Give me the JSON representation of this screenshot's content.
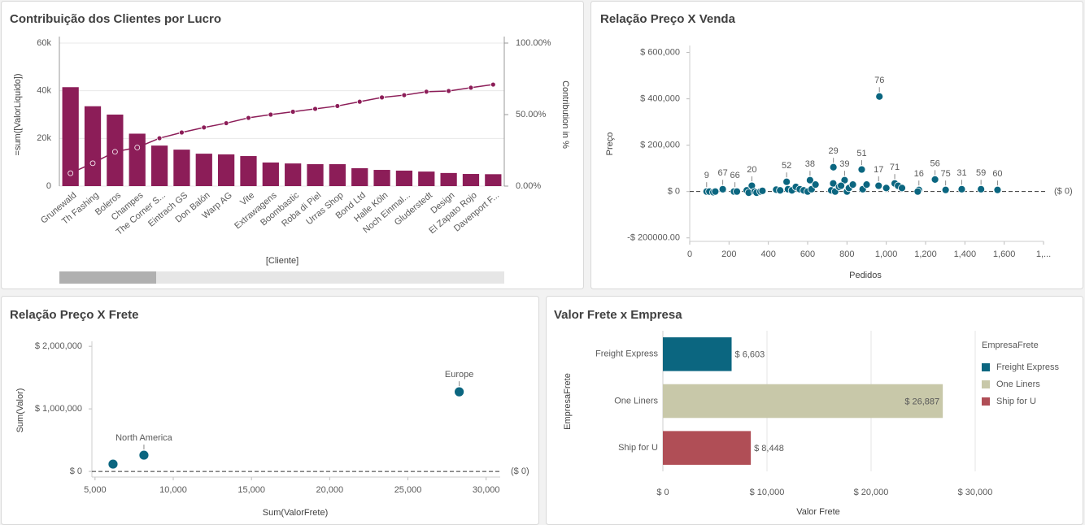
{
  "chart_data": [
    {
      "type": "bar",
      "title": "Contribuição dos Clientes por Lucro",
      "y_label": "=sum([ValorLiquido])",
      "y2_label": "Contribution in %",
      "x_label": "[Cliente]",
      "categories": [
        "Grunewald",
        "Th Fashing",
        "Boleros",
        "Champes",
        "The Corner S...",
        "Eintrach GS",
        "Don Balón",
        "Warp AG",
        "Vite",
        "Extrawagens",
        "Boombastic",
        "Roba di Piel",
        "Urras Shop",
        "Bond Ltd",
        "Halle Köln",
        "Noch Einmal...",
        "Gluderstedt",
        "Design",
        "El Zapato Rojo",
        "Davenport F..."
      ],
      "series": [
        {
          "color": "#8c1d58",
          "values": [
            41500,
            33500,
            30000,
            22000,
            17000,
            15300,
            13600,
            13300,
            12600,
            9900,
            9500,
            9200,
            9200,
            7500,
            6800,
            6500,
            6100,
            5500,
            5100,
            5000
          ]
        },
        {
          "type": "line",
          "axis": "y2",
          "color": "#8c1d58",
          "values": [
            9,
            16,
            24,
            27,
            33.5,
            37.5,
            41,
            44,
            47.7,
            50,
            52,
            54,
            56,
            59,
            62,
            63.6,
            66,
            66.5,
            68.8,
            71
          ]
        }
      ],
      "ylim": [
        0,
        60000
      ],
      "yticks": [
        0,
        {
          "value": 20000,
          "label": "20k"
        },
        {
          "value": 40000,
          "label": "40k"
        },
        {
          "value": 60000,
          "label": "60k"
        }
      ],
      "y2lim": [
        0,
        100
      ],
      "y2ticks": [
        {
          "value": 0,
          "label": "0.00%"
        },
        {
          "value": 50,
          "label": "50.00%"
        },
        {
          "value": 100,
          "label": "100.00%"
        }
      ],
      "grid": true
    },
    {
      "type": "scatter",
      "title": "Relação Preço X Venda",
      "x_label": "Pedidos",
      "y_label": "Preço",
      "color": "#0b6680",
      "x": [
        86,
        168,
        230,
        316,
        493,
        612,
        731,
        788,
        875,
        965,
        961,
        1043,
        1166,
        1248,
        1302,
        1384,
        1482,
        1566,
        100,
        120,
        130,
        225,
        240,
        290,
        300,
        330,
        340,
        360,
        370,
        440,
        460,
        500,
        520,
        540,
        560,
        580,
        600,
        620,
        640,
        720,
        730,
        740,
        760,
        770,
        800,
        810,
        830,
        880,
        900,
        1000,
        1060,
        1080,
        1160
      ],
      "y": [
        0,
        10000,
        0,
        25000,
        42000,
        49000,
        105000,
        49000,
        95000,
        410000,
        25000,
        35000,
        7000,
        52000,
        7000,
        10000,
        10000,
        7000,
        0,
        -3000,
        0,
        0,
        0,
        5000,
        -5000,
        0,
        -5000,
        0,
        3000,
        8000,
        5000,
        10000,
        5000,
        20000,
        10000,
        5000,
        0,
        10000,
        30000,
        5000,
        35000,
        0,
        20000,
        25000,
        0,
        15000,
        30000,
        10000,
        30000,
        15000,
        25000,
        15000,
        0
      ],
      "point_labels": [
        "9",
        "67",
        "66",
        "20",
        "52",
        "38",
        "29",
        "39",
        "51",
        "76",
        "17",
        "71",
        "16",
        "56",
        "75",
        "31",
        "59",
        "60",
        null,
        null,
        null,
        null,
        null,
        null,
        null,
        null,
        null,
        null,
        null,
        null,
        null,
        null,
        null,
        null,
        null,
        null,
        null,
        null,
        null,
        null,
        null,
        null,
        null,
        null,
        null,
        null,
        null,
        null,
        null,
        null,
        null,
        null,
        null
      ],
      "xlim": [
        0,
        1800
      ],
      "xticks": [
        0,
        200,
        400,
        600,
        800,
        {
          "value": 1000,
          "label": "1,000"
        },
        {
          "value": 1200,
          "label": "1,200"
        },
        {
          "value": 1400,
          "label": "1,400"
        },
        {
          "value": 1600,
          "label": "1,600"
        },
        {
          "value": 1800,
          "label": "1,..."
        }
      ],
      "ylim": [
        -215000,
        630000
      ],
      "yticks": [
        {
          "value": -200000,
          "label": "-$ 200000.00"
        },
        {
          "value": 0,
          "label": "$ 0"
        },
        {
          "value": 200000,
          "label": "$ 200,000"
        },
        {
          "value": 400000,
          "label": "$ 400,000"
        },
        {
          "value": 600000,
          "label": "$ 600,000"
        }
      ],
      "reference_line": {
        "value": 0,
        "label": "($ 0)"
      }
    },
    {
      "type": "scatter",
      "title": "Relação Preço X Frete",
      "x_label": "Sum(ValorFrete)",
      "y_label": "Sum(Valor)",
      "color": "#0b6680",
      "x": [
        6150,
        8125,
        28280
      ],
      "y": [
        117000,
        260000,
        1273000
      ],
      "point_labels": [
        null,
        "North America",
        "Europe"
      ],
      "xlim": [
        4800,
        30900
      ],
      "xticks": [
        {
          "value": 5000,
          "label": "5,000"
        },
        {
          "value": 10000,
          "label": "10,000"
        },
        {
          "value": 15000,
          "label": "15,000"
        },
        {
          "value": 20000,
          "label": "20,000"
        },
        {
          "value": 25000,
          "label": "25,000"
        },
        {
          "value": 30000,
          "label": "30,000"
        }
      ],
      "ylim": [
        -90000,
        2080000
      ],
      "yticks": [
        {
          "value": 0,
          "label": "$ 0"
        },
        {
          "value": 1000000,
          "label": "$ 1,000,000"
        },
        {
          "value": 2000000,
          "label": "$ 2,000,000"
        }
      ],
      "reference_line": {
        "value": 0,
        "label": "($ 0)"
      }
    },
    {
      "type": "hbar",
      "title": "Valor Frete x Empresa",
      "x_label": "Valor Frete",
      "y_label": "EmpresaFrete",
      "legend_title": "EmpresaFrete",
      "legend": "right",
      "categories": [
        "Freight Express",
        "One Liners",
        "Ship for U"
      ],
      "values": [
        6603,
        26887,
        8448
      ],
      "value_labels": [
        "$ 6,603",
        "$ 26,887",
        "$ 8,448"
      ],
      "colors": [
        "#0b6680",
        "#c8c8a9",
        "#b04e56"
      ],
      "xlim": [
        0,
        30000
      ],
      "xticks": [
        {
          "value": 0,
          "label": "$ 0"
        },
        {
          "value": 10000,
          "label": "$ 10,000"
        },
        {
          "value": 20000,
          "label": "$ 20,000"
        },
        {
          "value": 30000,
          "label": "$ 30,000"
        }
      ],
      "grid": true
    }
  ]
}
